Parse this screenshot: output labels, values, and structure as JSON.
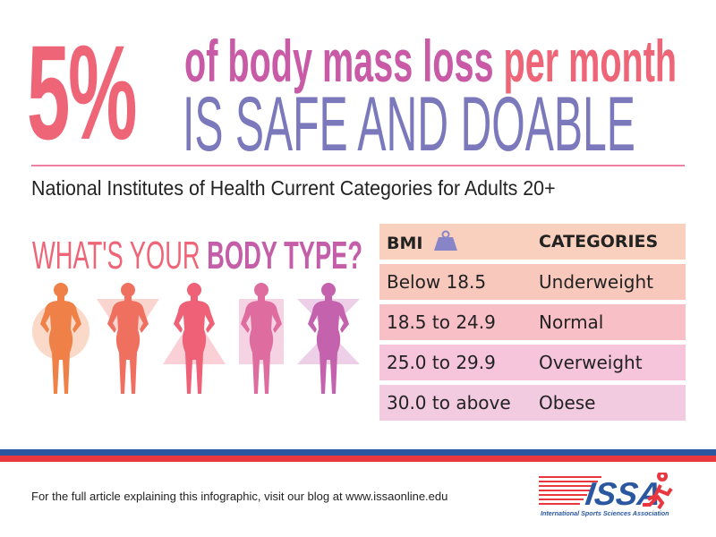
{
  "headline": {
    "percent": "5%",
    "line1_a": "of body mass loss",
    "line1_b": "per month",
    "line2": "IS SAFE AND DOABLE"
  },
  "subtitle": "National Institutes of Health Current Categories for Adults 20+",
  "body_type": {
    "question_a": "WHAT'S YOUR",
    "question_b": "BODY TYPE?",
    "figures": [
      {
        "shape": "circle",
        "color": "#ef8048"
      },
      {
        "shape": "inverted-triangle",
        "color": "#f0705f"
      },
      {
        "shape": "triangle",
        "color": "#ee6177"
      },
      {
        "shape": "rectangle",
        "color": "#de6c9e"
      },
      {
        "shape": "hourglass",
        "color": "#c462ae"
      }
    ]
  },
  "table": {
    "header": {
      "bmi": "BMI",
      "category": "CATEGORIES",
      "icon": "weight-icon"
    },
    "rows": [
      {
        "bmi": "Below 18.5",
        "category": "Underweight",
        "color": "#f9c8bd"
      },
      {
        "bmi": "18.5 to 24.9",
        "category": "Normal",
        "color": "#f8bfc6"
      },
      {
        "bmi": "25.0 to 29.9",
        "category": "Overweight",
        "color": "#f6c4db"
      },
      {
        "bmi": "30.0 to above",
        "category": "Obese",
        "color": "#f3cbe0"
      }
    ],
    "header_color": "#f9d0bd"
  },
  "footer": {
    "text": "For the full article explaining this infographic, visit our blog at www.issaonline.edu",
    "logo_text": "ISSA",
    "logo_subtext": "International Sports Sciences Association"
  }
}
